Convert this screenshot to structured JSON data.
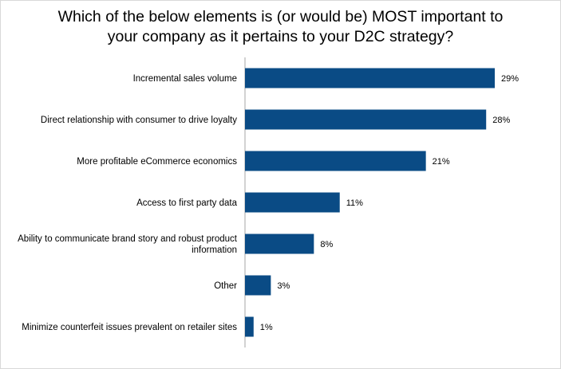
{
  "chart_data": {
    "type": "bar",
    "orientation": "horizontal",
    "title_lines": [
      "Which of the below elements is (or would be) MOST important to",
      "your company as it pertains to your D2C strategy?"
    ],
    "categories": [
      [
        "Incremental sales volume"
      ],
      [
        "Direct relationship with consumer to drive loyalty"
      ],
      [
        "More profitable eCommerce economics"
      ],
      [
        "Access to first party data"
      ],
      [
        "Ability to communicate brand story and robust product",
        "information"
      ],
      [
        "Other"
      ],
      [
        "Minimize counterfeit issues prevalent on retailer sites"
      ]
    ],
    "values": [
      29,
      28,
      21,
      11,
      8,
      3,
      1
    ],
    "value_labels": [
      "29%",
      "28%",
      "21%",
      "11%",
      "8%",
      "3%",
      "1%"
    ],
    "unit": "%",
    "xlim": [
      0,
      29
    ],
    "grid": false,
    "legend": "none",
    "bar_color": "#0a4b85",
    "axis_color": "#a6a6a6"
  }
}
